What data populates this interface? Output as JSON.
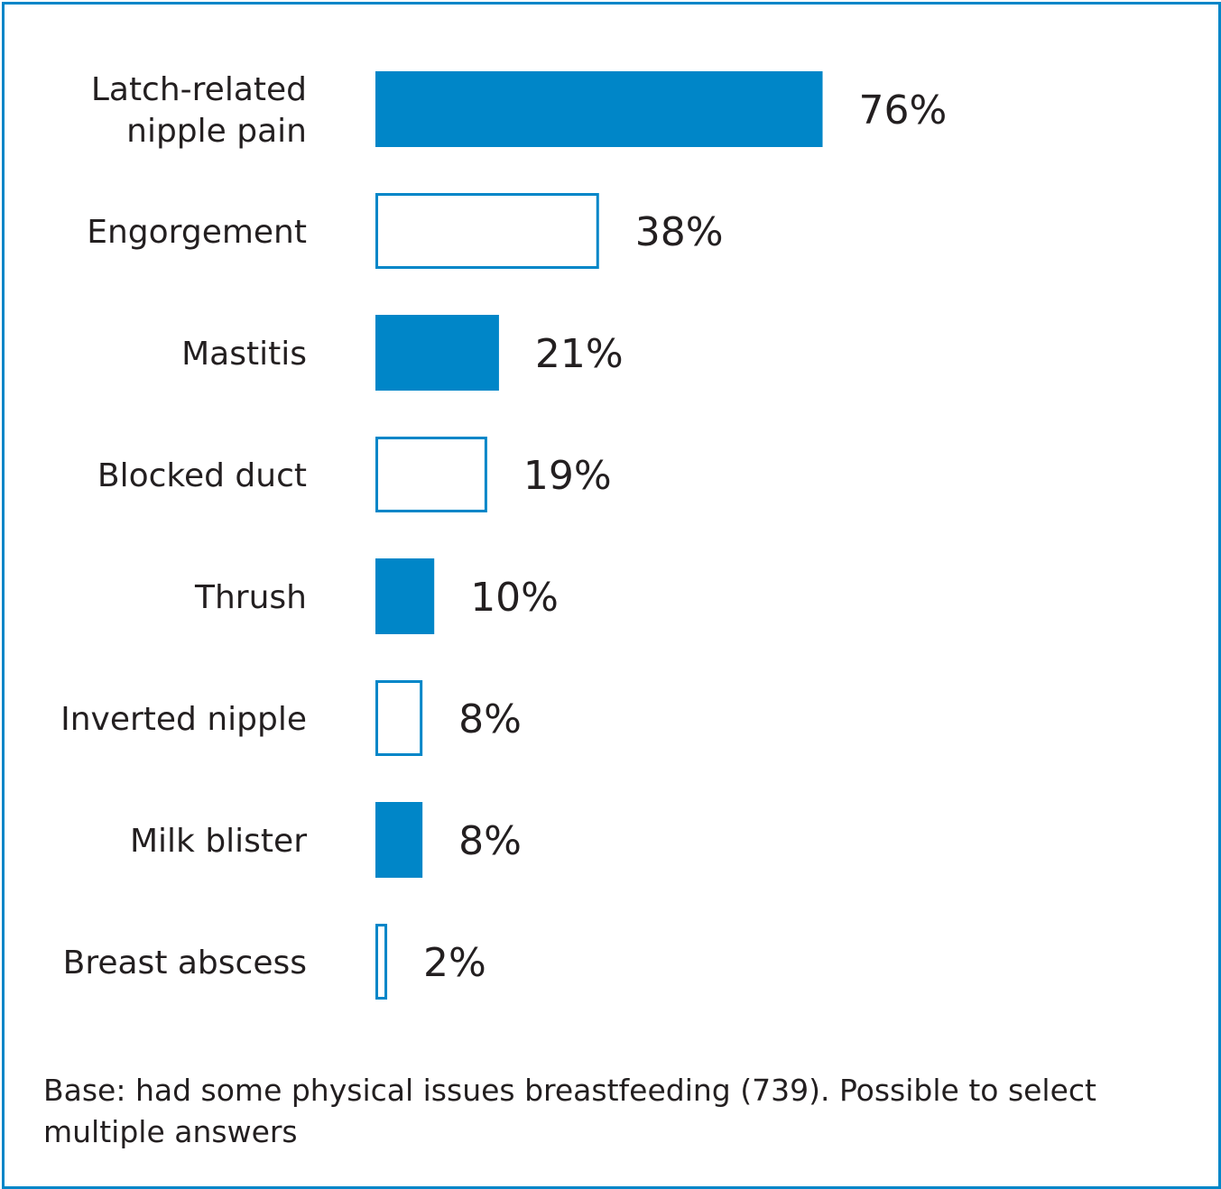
{
  "chart_data": {
    "type": "bar",
    "orientation": "horizontal",
    "categories": [
      [
        "Latch-related",
        "nipple pain"
      ],
      [
        "Engorgement"
      ],
      [
        "Mastitis"
      ],
      [
        "Blocked duct"
      ],
      [
        "Thrush"
      ],
      [
        "Inverted nipple"
      ],
      [
        "Milk blister"
      ],
      [
        "Breast abscess"
      ]
    ],
    "values": [
      76,
      38,
      21,
      19,
      10,
      8,
      8,
      2
    ],
    "value_labels": [
      "76%",
      "38%",
      "21%",
      "19%",
      "10%",
      "8%",
      "8%",
      "2%"
    ],
    "bar_style": [
      "filled",
      "outline",
      "filled",
      "outline",
      "filled",
      "outline",
      "filled",
      "outline"
    ],
    "unit": "%",
    "xlim": [
      0,
      100
    ],
    "grid": false,
    "legend": "none"
  },
  "colors": {
    "bar": "#0086c8",
    "frame": "#0086c8",
    "text": "#231f20"
  },
  "footnote": "Base: had some physical issues breastfeeding (739). Possible to select multiple answers"
}
